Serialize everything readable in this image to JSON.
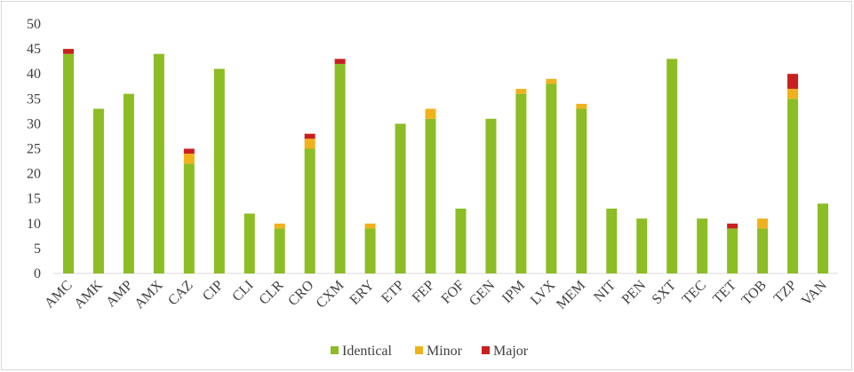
{
  "chart_data": {
    "type": "stacked_bar",
    "categories": [
      "AMC",
      "AMK",
      "AMP",
      "AMX",
      "CAZ",
      "CIP",
      "CLI",
      "CLR",
      "CRO",
      "CXM",
      "ERY",
      "ETP",
      "FEP",
      "FOF",
      "GEN",
      "IPM",
      "LVX",
      "MEM",
      "NIT",
      "PEN",
      "SXT",
      "TEC",
      "TET",
      "TOB",
      "TZP",
      "VAN"
    ],
    "series": [
      {
        "name": "Identical",
        "color": "#8cbd25",
        "values": [
          44,
          33,
          36,
          44,
          22,
          41,
          12,
          9,
          25,
          42,
          9,
          30,
          31,
          13,
          31,
          36,
          38,
          33,
          13,
          11,
          43,
          11,
          9,
          9,
          35,
          14
        ]
      },
      {
        "name": "Minor",
        "color": "#f0b21b",
        "values": [
          0,
          0,
          0,
          0,
          2,
          0,
          0,
          1,
          2,
          0,
          1,
          0,
          2,
          0,
          0,
          1,
          1,
          1,
          0,
          0,
          0,
          0,
          0,
          2,
          2,
          0
        ]
      },
      {
        "name": "Major",
        "color": "#c8201f",
        "values": [
          1,
          0,
          0,
          0,
          1,
          0,
          0,
          0,
          1,
          1,
          0,
          0,
          0,
          0,
          0,
          0,
          0,
          0,
          0,
          0,
          0,
          0,
          1,
          0,
          3,
          0
        ]
      }
    ],
    "ylim": [
      0,
      50
    ],
    "yticks": [
      0,
      5,
      10,
      15,
      20,
      25,
      30,
      35,
      40,
      45,
      50
    ],
    "grid": false,
    "legend": "bottom"
  }
}
